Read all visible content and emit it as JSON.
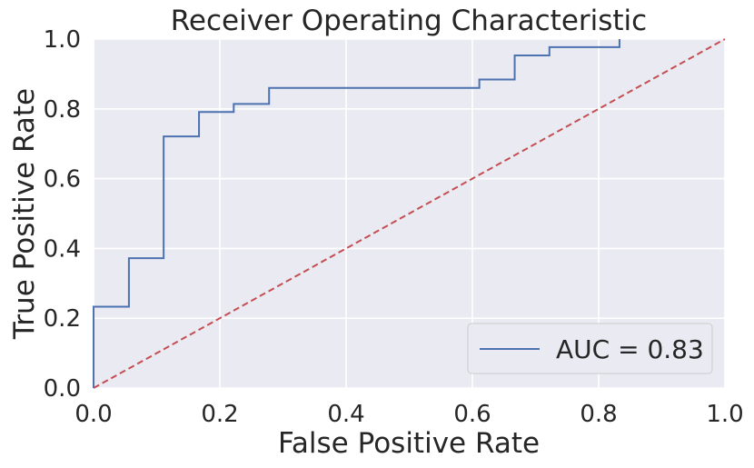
{
  "chart_data": {
    "type": "line",
    "title": "Receiver Operating Characteristic",
    "xlabel": "False Positive Rate",
    "ylabel": "True Positive Rate",
    "xlim": [
      0.0,
      1.0
    ],
    "ylim": [
      0.0,
      1.0
    ],
    "x_ticks": [
      "0.0",
      "0.2",
      "0.4",
      "0.6",
      "0.8",
      "1.0"
    ],
    "y_ticks": [
      "0.0",
      "0.2",
      "0.4",
      "0.6",
      "0.8",
      "1.0"
    ],
    "grid": true,
    "legend_position": "lower-right",
    "series": [
      {
        "name": "AUC = 0.83",
        "color": "#4c72b0",
        "style": "step",
        "x": [
          0.0,
          0.0,
          0.056,
          0.056,
          0.111,
          0.111,
          0.167,
          0.167,
          0.222,
          0.222,
          0.278,
          0.278,
          0.611,
          0.611,
          0.667,
          0.667,
          0.722,
          0.722,
          0.833,
          0.833
        ],
        "y": [
          0.0,
          0.233,
          0.233,
          0.372,
          0.372,
          0.721,
          0.721,
          0.791,
          0.791,
          0.814,
          0.814,
          0.86,
          0.86,
          0.884,
          0.884,
          0.953,
          0.953,
          0.977,
          0.977,
          1.0
        ]
      },
      {
        "color": "#c44e52",
        "style": "dashed",
        "x": [
          0.0,
          1.0
        ],
        "y": [
          0.0,
          1.0
        ]
      }
    ]
  }
}
